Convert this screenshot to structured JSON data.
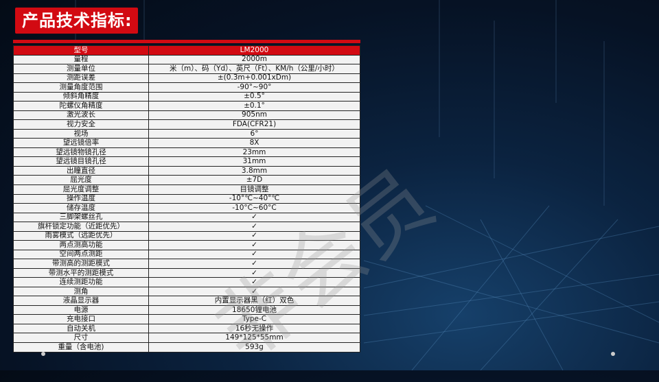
{
  "title": "产品技术指标:",
  "watermark": "非会员",
  "colors": {
    "accent": "#d20a12",
    "background": "#061224"
  },
  "table": {
    "header": {
      "key": "型号",
      "value": "LM2000"
    },
    "rows": [
      {
        "key": "量程",
        "value": "2000m"
      },
      {
        "key": "测量单位",
        "value": "米（m）、码（Yd）、英尺（Ft）、KM/h（公里/小时）"
      },
      {
        "key": "测距误差",
        "value": "±(0.3m+0.001xDm)"
      },
      {
        "key": "测量角度范围",
        "value": "-90°~90°"
      },
      {
        "key": "倾斜角精度",
        "value": "±0.5°"
      },
      {
        "key": "陀螺仪角精度",
        "value": "±0.1°"
      },
      {
        "key": "激光波长",
        "value": "905nm"
      },
      {
        "key": "视力安全",
        "value": "FDA(CFR21)"
      },
      {
        "key": "视场",
        "value": "6°"
      },
      {
        "key": "望远镜倍率",
        "value": "8X"
      },
      {
        "key": "望远镜物镜孔径",
        "value": "23mm"
      },
      {
        "key": "望远镜目镜孔径",
        "value": "31mm"
      },
      {
        "key": "出瞳直径",
        "value": "3.8mm"
      },
      {
        "key": "屈光度",
        "value": "±7D"
      },
      {
        "key": "屈光度调整",
        "value": "目镜调整"
      },
      {
        "key": "操作温度",
        "value": "-10°℃~40°℃"
      },
      {
        "key": "储存温度",
        "value": "-10°C~60°C"
      },
      {
        "key": "三脚架螺丝孔",
        "value": "✓"
      },
      {
        "key": "旗杆锁定功能（近距优先）",
        "value": "✓"
      },
      {
        "key": "雨雾模式（远距优先）",
        "value": "✓"
      },
      {
        "key": "两点测高功能",
        "value": "✓"
      },
      {
        "key": "空间两点测距",
        "value": "✓"
      },
      {
        "key": "带测高的测距模式",
        "value": "✓"
      },
      {
        "key": "带测水平的测距模式",
        "value": "✓"
      },
      {
        "key": "连续测距功能",
        "value": "✓"
      },
      {
        "key": "测角",
        "value": "✓"
      },
      {
        "key": "液晶显示器",
        "value": "内置显示器黑（红）双色"
      },
      {
        "key": "电源",
        "value": "18650锂电池"
      },
      {
        "key": "充电接口",
        "value": "Type-C"
      },
      {
        "key": "自动关机",
        "value": "16秒无操作"
      },
      {
        "key": "尺寸",
        "value": "149*125*55mm"
      },
      {
        "key": "重量（含电池)",
        "value": "593g"
      }
    ]
  }
}
